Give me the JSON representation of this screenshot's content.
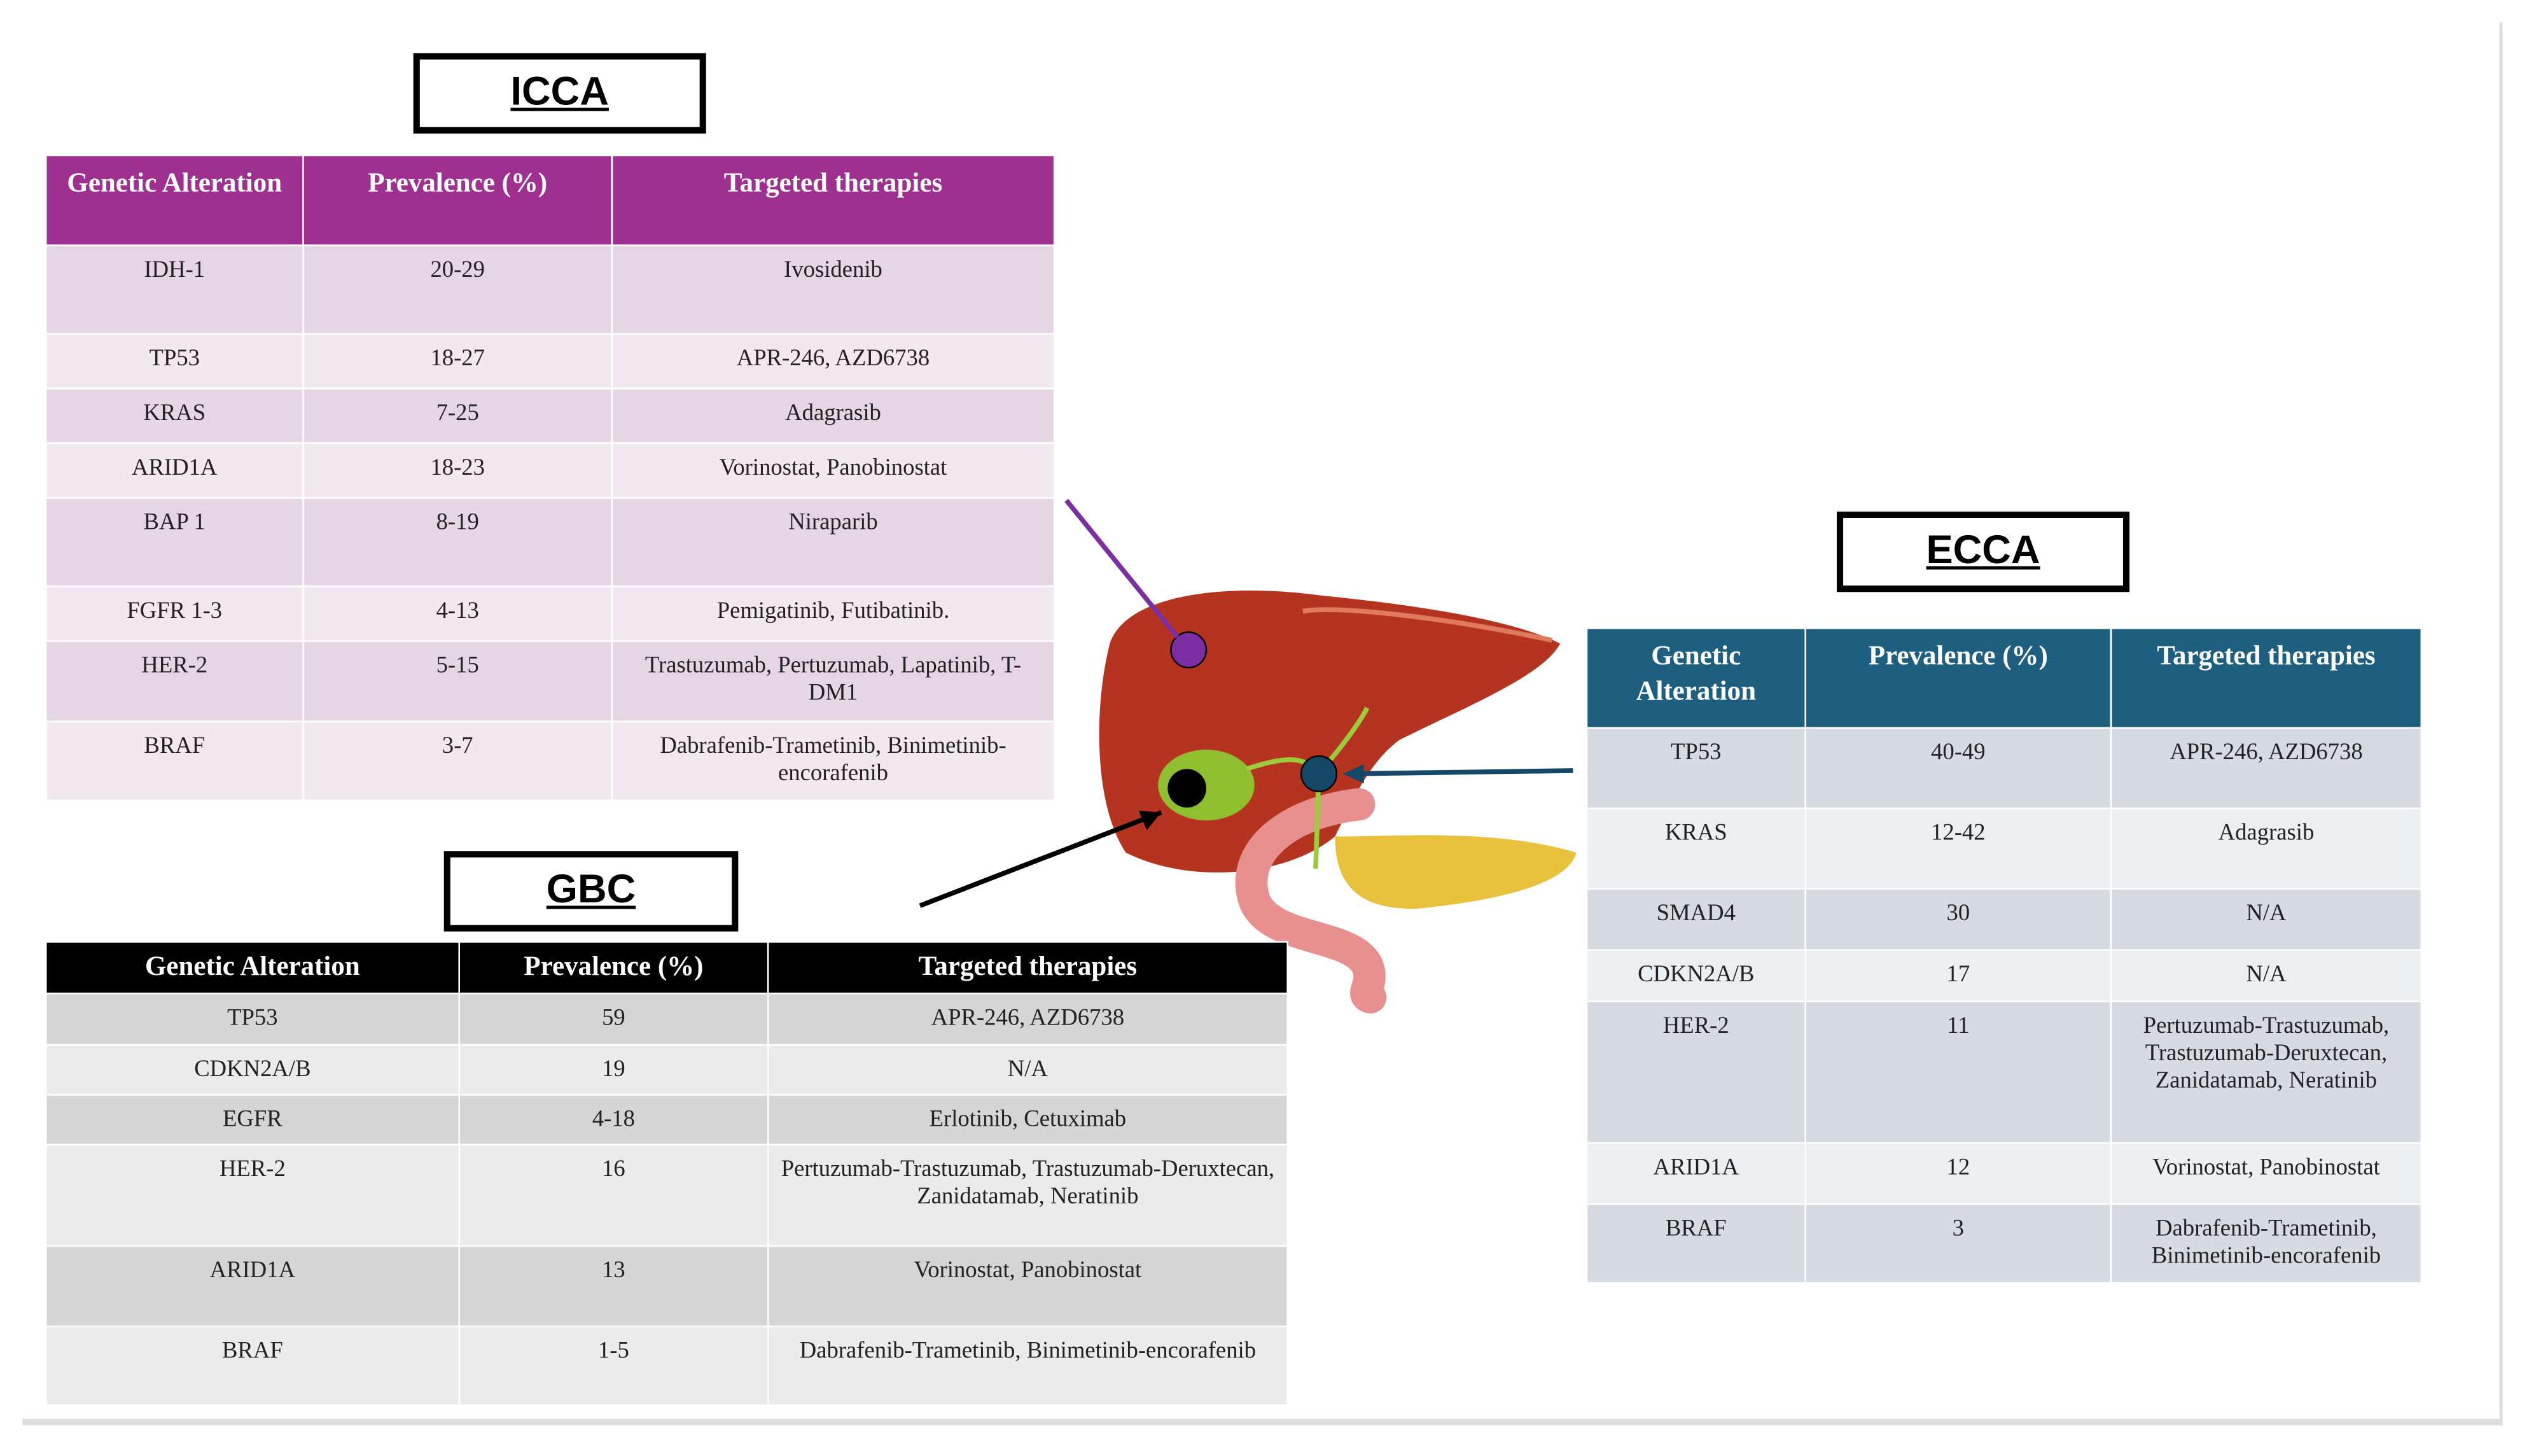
{
  "icca": {
    "title": "ICCA",
    "header": [
      "Genetic Alteration",
      "Prevalence (%)",
      "Targeted therapies"
    ],
    "rows": [
      [
        "IDH-1",
        "20-29",
        "Ivosidenib"
      ],
      [
        "TP53",
        "18-27",
        "APR-246, AZD6738"
      ],
      [
        "KRAS",
        "7-25",
        "Adagrasib"
      ],
      [
        "ARID1A",
        "18-23",
        "Vorinostat, Panobinostat"
      ],
      [
        "BAP 1",
        "8-19",
        "Niraparib"
      ],
      [
        "FGFR 1-3",
        "4-13",
        "Pemigatinib, Futibatinib."
      ],
      [
        "HER-2",
        "5-15",
        "Trastuzumab, Pertuzumab, Lapatinib, T-DM1"
      ],
      [
        "BRAF",
        "3-7",
        "Dabrafenib-Trametinib, Binimetinib-encorafenib"
      ]
    ]
  },
  "gbc": {
    "title": "GBC",
    "header": [
      "Genetic Alteration",
      "Prevalence (%)",
      "Targeted therapies"
    ],
    "rows": [
      [
        "TP53",
        "59",
        "APR-246, AZD6738"
      ],
      [
        "CDKN2A/B",
        "19",
        "N/A"
      ],
      [
        "EGFR",
        "4-18",
        "Erlotinib, Cetuximab"
      ],
      [
        "HER-2",
        "16",
        "Pertuzumab-Trastuzumab, Trastuzumab-Deruxtecan, Zanidatamab, Neratinib"
      ],
      [
        "ARID1A",
        "13",
        "Vorinostat, Panobinostat"
      ],
      [
        "BRAF",
        "1-5",
        "Dabrafenib-Trametinib, Binimetinib-encorafenib"
      ]
    ]
  },
  "ecca": {
    "title": "ECCA",
    "header": [
      "Genetic Alteration",
      "Prevalence (%)",
      "Targeted therapies"
    ],
    "rows": [
      [
        "TP53",
        "40-49",
        "APR-246, AZD6738"
      ],
      [
        "KRAS",
        "12-42",
        "Adagrasib"
      ],
      [
        "SMAD4",
        "30",
        "N/A"
      ],
      [
        "CDKN2A/B",
        "17",
        "N/A"
      ],
      [
        "HER-2",
        "11",
        "Pertuzumab-Trastuzumab, Trastuzumab-Deruxtecan, Zanidatamab, Neratinib"
      ],
      [
        "ARID1A",
        "12",
        "Vorinostat, Panobinostat"
      ],
      [
        "BRAF",
        "3",
        "Dabrafenib-Trametinib, Binimetinib-encorafenib"
      ]
    ]
  }
}
